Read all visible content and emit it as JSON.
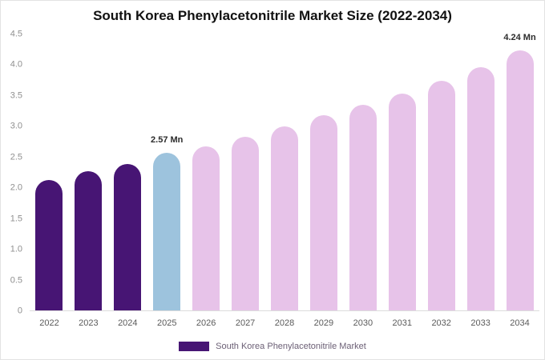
{
  "title": "South Korea Phenylacetonitrile Market Size (2022-2034)",
  "legend": {
    "label": "South Korea Phenylacetonitrile Market",
    "swatch_color": "#471574"
  },
  "colors": {
    "historical_bar": "#471574",
    "highlight_bar": "#9dc3dd",
    "forecast_bar": "#e7c3e9",
    "axis_text": "#8f8f8f",
    "title_text": "#111111"
  },
  "chart_data": {
    "type": "bar",
    "title": "South Korea Phenylacetonitrile Market Size (2022-2034)",
    "xlabel": "",
    "ylabel": "",
    "categories": [
      "2022",
      "2023",
      "2024",
      "2025",
      "2026",
      "2027",
      "2028",
      "2029",
      "2030",
      "2031",
      "2032",
      "2033",
      "2034"
    ],
    "values": [
      2.13,
      2.27,
      2.39,
      2.57,
      2.68,
      2.83,
      3.0,
      3.18,
      3.35,
      3.53,
      3.74,
      3.97,
      4.24
    ],
    "bar_colors": [
      "#471574",
      "#471574",
      "#471574",
      "#9dc3dd",
      "#e7c3e9",
      "#e7c3e9",
      "#e7c3e9",
      "#e7c3e9",
      "#e7c3e9",
      "#e7c3e9",
      "#e7c3e9",
      "#e7c3e9",
      "#e7c3e9"
    ],
    "annotations": {
      "2025": "2.57 Mn",
      "2034": "4.24 Mn"
    },
    "ylim": [
      0,
      4.5
    ],
    "yticks": [
      0,
      0.5,
      1.0,
      1.5,
      2.0,
      2.5,
      3.0,
      3.5,
      4.0,
      4.5
    ],
    "grid": false,
    "legend_position": "bottom",
    "legend_entries": [
      "South Korea Phenylacetonitrile Market"
    ]
  }
}
